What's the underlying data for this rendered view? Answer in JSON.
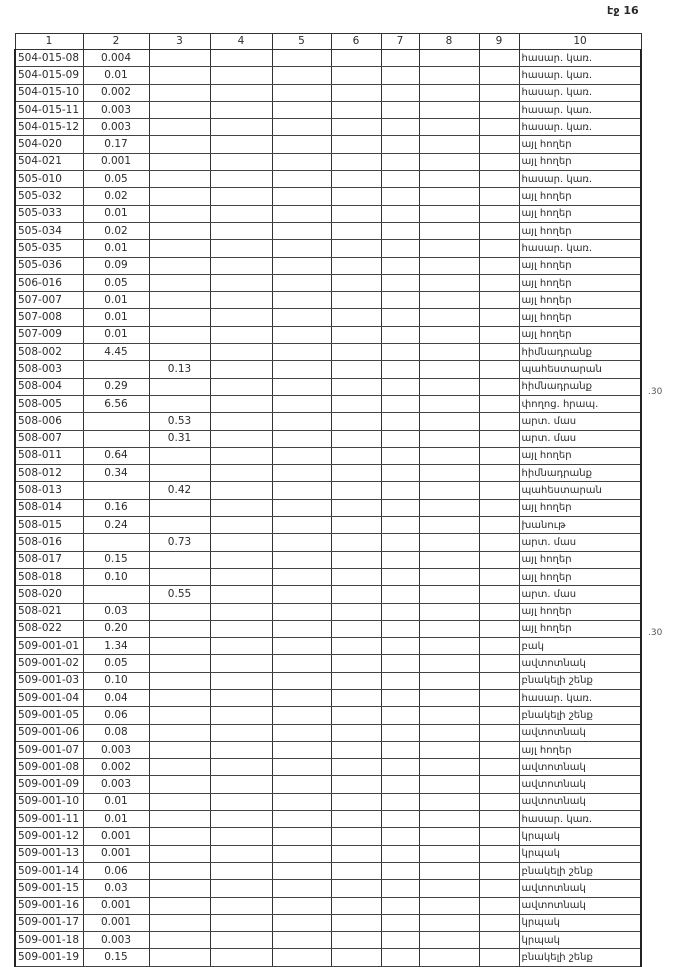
{
  "page_label": "էջ 16",
  "side_notes": [
    ".30",
    ".30"
  ],
  "headers": [
    "1",
    "2",
    "3",
    "4",
    "5",
    "6",
    "7",
    "8",
    "9",
    "10"
  ],
  "rows": [
    [
      "504-015-08",
      "0.004",
      "",
      "հասար. կառ."
    ],
    [
      "504-015-09",
      "0.01",
      "",
      "հասար. կառ."
    ],
    [
      "504-015-10",
      "0.002",
      "",
      "հասար. կառ."
    ],
    [
      "504-015-11",
      "0.003",
      "",
      "հասար. կառ."
    ],
    [
      "504-015-12",
      "0.003",
      "",
      "հասար. կառ."
    ],
    [
      "504-020",
      "0.17",
      "",
      "այլ հողեր"
    ],
    [
      "504-021",
      "0.001",
      "",
      "այլ հողեր"
    ],
    [
      "505-010",
      "0.05",
      "",
      "հասար. կառ."
    ],
    [
      "505-032",
      "0.02",
      "",
      "այլ հողեր"
    ],
    [
      "505-033",
      "0.01",
      "",
      "այլ հողեր"
    ],
    [
      "505-034",
      "0.02",
      "",
      "այլ հողեր"
    ],
    [
      "505-035",
      "0.01",
      "",
      "հասար. կառ."
    ],
    [
      "505-036",
      "0.09",
      "",
      "այլ հողեր"
    ],
    [
      "506-016",
      "0.05",
      "",
      "այլ հողեր"
    ],
    [
      "507-007",
      "0.01",
      "",
      "այլ հողեր"
    ],
    [
      "507-008",
      "0.01",
      "",
      "այլ հողեր"
    ],
    [
      "507-009",
      "0.01",
      "",
      "այլ հողեր"
    ],
    [
      "508-002",
      "4.45",
      "",
      "հիմնադրանք"
    ],
    [
      "508-003",
      "",
      "0.13",
      "պահեստարան"
    ],
    [
      "508-004",
      "0.29",
      "",
      "հիմնադրանք"
    ],
    [
      "508-005",
      "6.56",
      "",
      "փողոց. հրապ."
    ],
    [
      "508-006",
      "",
      "0.53",
      "արտ. մաս"
    ],
    [
      "508-007",
      "",
      "0.31",
      "արտ. մաս"
    ],
    [
      "508-011",
      "0.64",
      "",
      "այլ հողեր"
    ],
    [
      "508-012",
      "0.34",
      "",
      "հիմնադրանք"
    ],
    [
      "508-013",
      "",
      "0.42",
      "պահեստարան"
    ],
    [
      "508-014",
      "0.16",
      "",
      "այլ հողեր"
    ],
    [
      "508-015",
      "0.24",
      "",
      "խանութ"
    ],
    [
      "508-016",
      "",
      "0.73",
      "արտ. մաս"
    ],
    [
      "508-017",
      "0.15",
      "",
      "այլ հողեր"
    ],
    [
      "508-018",
      "0.10",
      "",
      "այլ հողեր"
    ],
    [
      "508-020",
      "",
      "0.55",
      "արտ. մաս"
    ],
    [
      "508-021",
      "0.03",
      "",
      "այլ հողեր"
    ],
    [
      "508-022",
      "0.20",
      "",
      "այլ հողեր"
    ],
    [
      "509-001-01",
      "1.34",
      "",
      "բակ"
    ],
    [
      "509-001-02",
      "0.05",
      "",
      "ավտոտնակ"
    ],
    [
      "509-001-03",
      "0.10",
      "",
      "բնակելի շենք"
    ],
    [
      "509-001-04",
      "0.04",
      "",
      "հասար. կառ."
    ],
    [
      "509-001-05",
      "0.06",
      "",
      "բնակելի շենք"
    ],
    [
      "509-001-06",
      "0.08",
      "",
      "ավտոտնակ"
    ],
    [
      "509-001-07",
      "0.003",
      "",
      "այլ հողեր"
    ],
    [
      "509-001-08",
      "0.002",
      "",
      "ավտոտնակ"
    ],
    [
      "509-001-09",
      "0.003",
      "",
      "ավտոտնակ"
    ],
    [
      "509-001-10",
      "0.01",
      "",
      "ավտոտնակ"
    ],
    [
      "509-001-11",
      "0.01",
      "",
      "հասար. կառ."
    ],
    [
      "509-001-12",
      "0.001",
      "",
      "կրպակ"
    ],
    [
      "509-001-13",
      "0.001",
      "",
      "կրպակ"
    ],
    [
      "509-001-14",
      "0.06",
      "",
      "բնակելի շենք"
    ],
    [
      "509-001-15",
      "0.03",
      "",
      "ավտոտնակ"
    ],
    [
      "509-001-16",
      "0.001",
      "",
      "ավտոտնակ"
    ],
    [
      "509-001-17",
      "0.001",
      "",
      "կրպակ"
    ],
    [
      "509-001-18",
      "0.003",
      "",
      "կրպակ"
    ],
    [
      "509-001-19",
      "0.15",
      "",
      "բնակելի շենք"
    ]
  ]
}
